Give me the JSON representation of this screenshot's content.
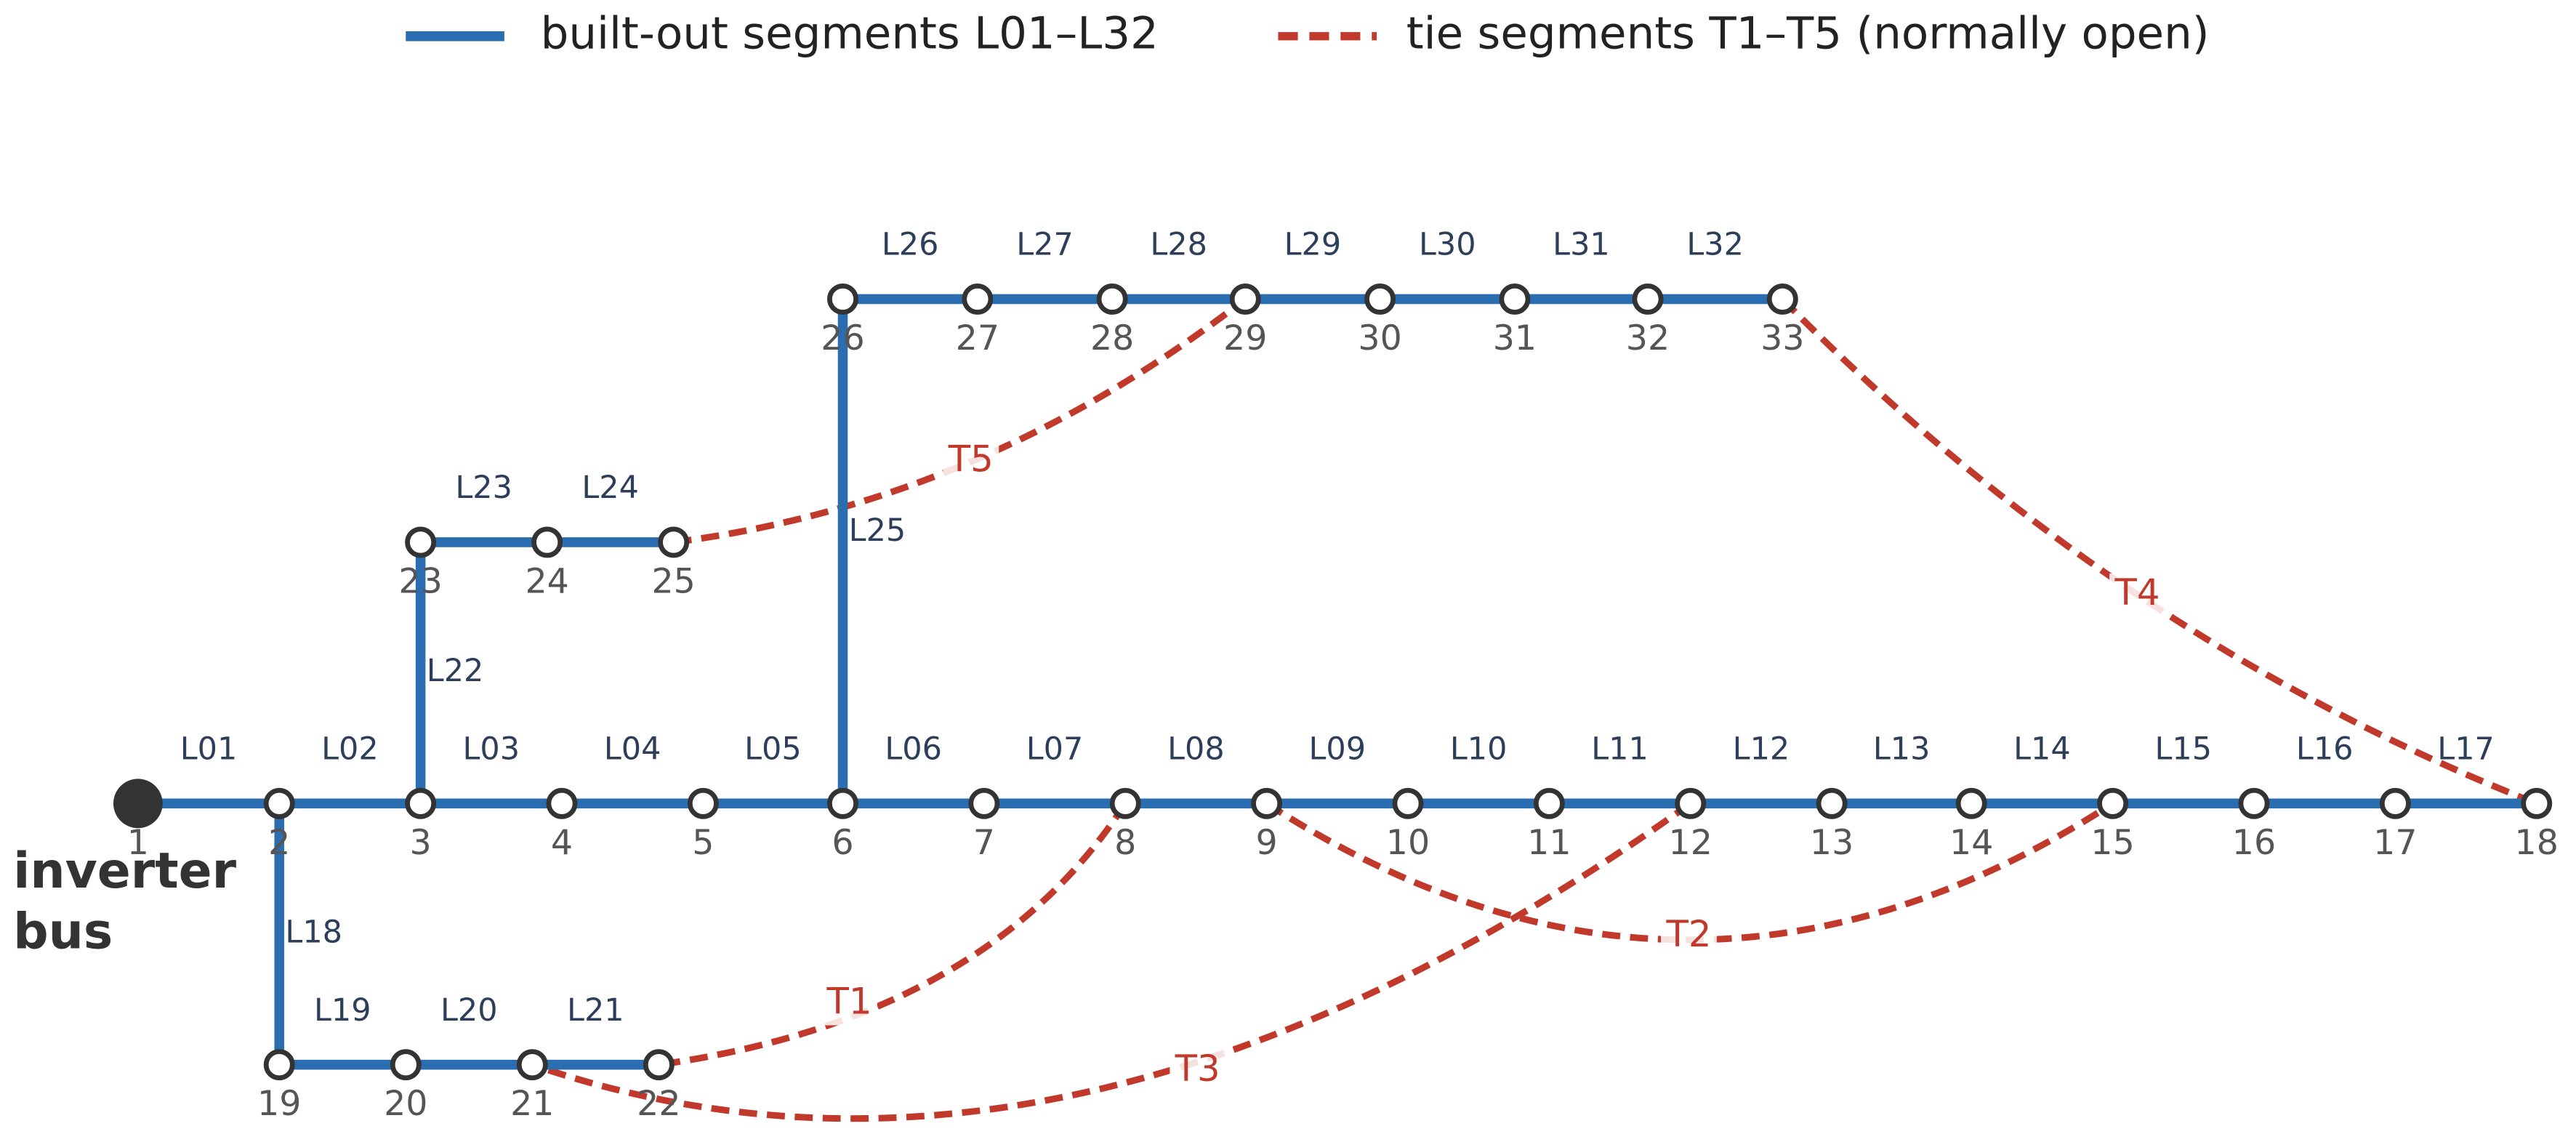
{
  "legend": [
    {
      "label": "built-out segments L01–L32"
    },
    {
      "label": "tie segments T1–T5 (normally open)"
    }
  ],
  "bus_label": [
    "inverter",
    "bus"
  ],
  "nodes": [
    "1",
    "2",
    "3",
    "4",
    "5",
    "6",
    "7",
    "8",
    "9",
    "10",
    "11",
    "12",
    "13",
    "14",
    "15",
    "16",
    "17",
    "18",
    "19",
    "20",
    "21",
    "22",
    "23",
    "24",
    "25",
    "26",
    "27",
    "28",
    "29",
    "30",
    "31",
    "32",
    "33"
  ],
  "lines": [
    "L01",
    "L02",
    "L03",
    "L04",
    "L05",
    "L06",
    "L07",
    "L08",
    "L09",
    "L10",
    "L11",
    "L12",
    "L13",
    "L14",
    "L15",
    "L16",
    "L17",
    "L18",
    "L19",
    "L20",
    "L21",
    "L22",
    "L23",
    "L24",
    "L25",
    "L26",
    "L27",
    "L28",
    "L29",
    "L30",
    "L31",
    "L32"
  ],
  "ties": [
    "T1",
    "T2",
    "T3",
    "T4",
    "T5"
  ]
}
